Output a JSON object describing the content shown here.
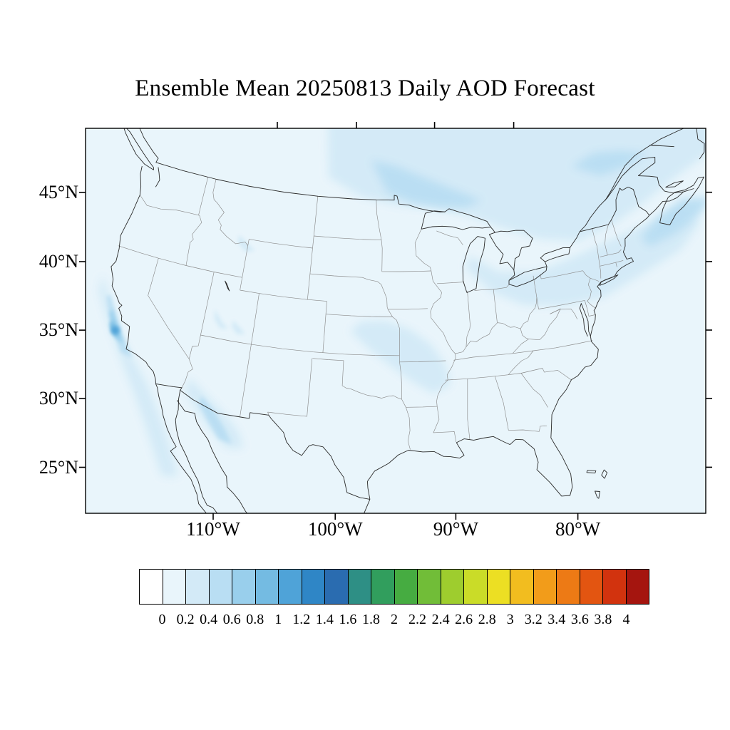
{
  "title": "Ensemble Mean 20250813 Daily AOD Forecast",
  "axes": {
    "x_ticks": [
      {
        "label": "110°W",
        "lon": -110
      },
      {
        "label": "100°W",
        "lon": -100
      },
      {
        "label": "90°W",
        "lon": -90
      },
      {
        "label": "80°W",
        "lon": -80
      }
    ],
    "y_ticks": [
      {
        "label": "45°N",
        "lat": 45
      },
      {
        "label": "40°N",
        "lat": 40
      },
      {
        "label": "35°N",
        "lat": 35
      },
      {
        "label": "30°N",
        "lat": 30
      },
      {
        "label": "25°N",
        "lat": 25
      }
    ]
  },
  "colorbar": {
    "tick_labels": [
      "0",
      "0.2",
      "0.4",
      "0.6",
      "0.8",
      "1",
      "1.2",
      "1.4",
      "1.6",
      "1.8",
      "2",
      "2.2",
      "2.4",
      "2.6",
      "2.8",
      "3",
      "3.2",
      "3.4",
      "3.6",
      "3.8",
      "4"
    ],
    "colors": [
      "#ffffff",
      "#e9f5fb",
      "#d3eaf7",
      "#b9def3",
      "#99cfec",
      "#74bbe2",
      "#4fa3d8",
      "#2f86c6",
      "#2a6cb0",
      "#2e8f85",
      "#319e5d",
      "#46ac41",
      "#71bd38",
      "#9ecd2e",
      "#cadc28",
      "#ecdf23",
      "#f2bd1f",
      "#f29c1a",
      "#ed7a15",
      "#e35511",
      "#d2330e",
      "#a5150f"
    ]
  },
  "chart_data": {
    "type": "map",
    "title": "Ensemble Mean 20250813 Daily AOD Forecast",
    "quantity": "Ensemble-mean daily aerosol optical depth (AOD) forecast over the continental United States",
    "x_tick_labels": [
      "110°W",
      "100°W",
      "90°W",
      "80°W"
    ],
    "y_tick_labels": [
      "45°N",
      "40°N",
      "35°N",
      "30°N",
      "25°N"
    ],
    "colorbar": {
      "min": 0,
      "max": 4,
      "interval": 0.2,
      "orientation": "horizontal",
      "position": "bottom"
    },
    "observed_features": [
      {
        "region": "background over most of CONUS and adjacent oceans",
        "aod_estimate": 0.1
      },
      {
        "region": "central/southern California coast (localized maximum)",
        "aod_estimate": 0.8
      },
      {
        "region": "southern Arizona into northern Mexico (Sonora)",
        "aod_estimate": 0.3
      },
      {
        "region": "southwest Montana / Yellowstone area",
        "aod_estimate": 0.3
      },
      {
        "region": "southern Utah spots",
        "aod_estimate": 0.3
      },
      {
        "region": "Oklahoma / Ozarks / mid-Mississippi valley",
        "aod_estimate": 0.3
      },
      {
        "region": "Great Lakes through Ohio Valley to Northeast US and offshore Atlantic",
        "aod_estimate": 0.3
      },
      {
        "region": "southern Canada north of the Great Lakes",
        "aod_estimate": 0.4
      },
      {
        "region": "offshore band along Baja California",
        "aod_estimate": 0.3
      }
    ]
  }
}
